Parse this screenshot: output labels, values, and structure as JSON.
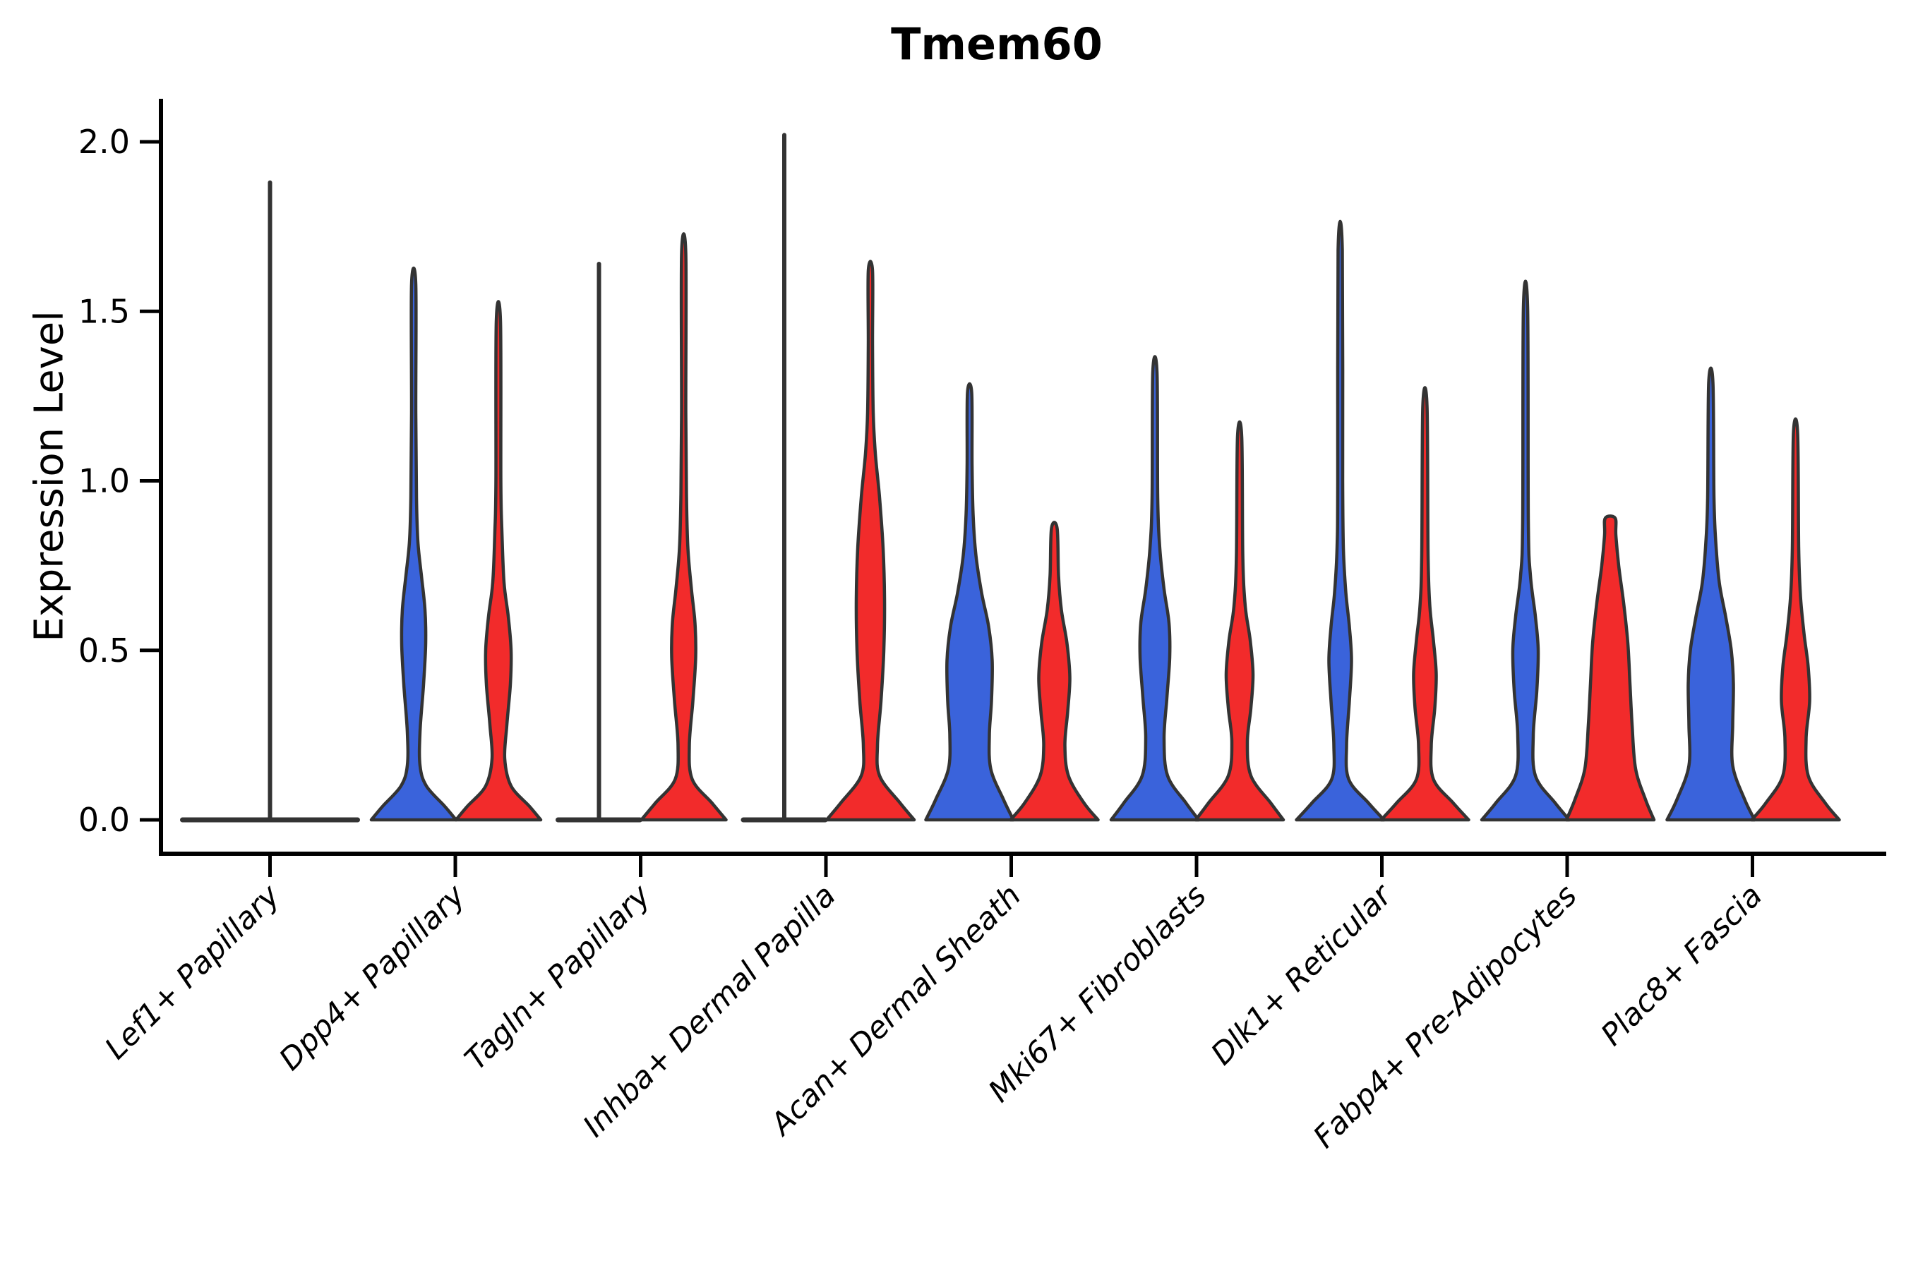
{
  "title": "Tmem60",
  "colors": {
    "blue_fill": "#3A63DB",
    "red_fill": "#F22B2B",
    "violin_outline": "#333333",
    "axis": "#000000",
    "text": "#000000"
  },
  "chart_data": {
    "type": "violin",
    "title": "Tmem60",
    "ylabel": "Expression Level",
    "xlabel": "",
    "ylim": [
      0,
      2.0
    ],
    "grid": false,
    "legend": "none",
    "yticks": [
      {
        "value": 0.0,
        "label": "0.0"
      },
      {
        "value": 0.5,
        "label": "0.5"
      },
      {
        "value": 1.0,
        "label": "1.0"
      },
      {
        "value": 1.5,
        "label": "1.5"
      },
      {
        "value": 2.0,
        "label": "2.0"
      }
    ],
    "categories": [
      "Lef1+ Papillary",
      "Dpp4+ Papillary",
      "Tagln+ Papillary",
      "Inhba+ Dermal Papilla",
      "Acan+ Dermal Sheath",
      "Mki67+ Fibroblasts",
      "Dlk1+ Reticular",
      "Fabp4+ Pre-Adipocytes",
      "Plac8+ Fascia"
    ],
    "series_note": "two violins per category: blue (left) and red (right); profile = [expression_value, density_halfwidth_px]",
    "groups": [
      {
        "category": "Lef1+ Papillary",
        "violins": [
          {
            "color": "blue",
            "type": "flat_spike",
            "offset": 0,
            "halfwidth": 124,
            "max": 1.88
          },
          {
            "color": "red",
            "type": "none"
          }
        ]
      },
      {
        "category": "Dpp4+ Papillary",
        "violins": [
          {
            "color": "blue",
            "type": "violin",
            "offset": -59,
            "max": 1.58,
            "profile": [
              [
                0,
                60
              ],
              [
                0.04,
                44
              ],
              [
                0.1,
                18
              ],
              [
                0.16,
                9
              ],
              [
                0.26,
                9
              ],
              [
                0.4,
                14
              ],
              [
                0.52,
                17
              ],
              [
                0.62,
                16
              ],
              [
                0.72,
                11
              ],
              [
                0.82,
                6
              ],
              [
                0.95,
                4
              ],
              [
                1.2,
                3
              ],
              [
                1.58,
                3
              ]
            ]
          },
          {
            "color": "red",
            "type": "violin",
            "offset": 61,
            "max": 1.47,
            "profile": [
              [
                0,
                60
              ],
              [
                0.04,
                44
              ],
              [
                0.1,
                18
              ],
              [
                0.18,
                9
              ],
              [
                0.28,
                12
              ],
              [
                0.4,
                17
              ],
              [
                0.5,
                18
              ],
              [
                0.6,
                14
              ],
              [
                0.7,
                8
              ],
              [
                0.85,
                5
              ],
              [
                1.0,
                3.5
              ],
              [
                1.47,
                3
              ]
            ]
          }
        ]
      },
      {
        "category": "Tagln+ Papillary",
        "violins": [
          {
            "color": "blue",
            "type": "flat_spike",
            "offset": -59,
            "halfwidth": 58,
            "max": 1.64
          },
          {
            "color": "red",
            "type": "violin",
            "offset": 61,
            "max": 1.67,
            "profile": [
              [
                0,
                60
              ],
              [
                0.05,
                40
              ],
              [
                0.12,
                12
              ],
              [
                0.22,
                8
              ],
              [
                0.35,
                13
              ],
              [
                0.48,
                17
              ],
              [
                0.58,
                16
              ],
              [
                0.68,
                11
              ],
              [
                0.8,
                6
              ],
              [
                0.95,
                4
              ],
              [
                1.2,
                3
              ],
              [
                1.67,
                3
              ]
            ]
          }
        ]
      },
      {
        "category": "Inhba+ Dermal Papilla",
        "violins": [
          {
            "color": "blue",
            "type": "flat_spike",
            "offset": -59,
            "halfwidth": 58,
            "max": 2.02
          },
          {
            "color": "red",
            "type": "violin",
            "offset": 63,
            "max": 1.62,
            "profile": [
              [
                0,
                62
              ],
              [
                0.05,
                42
              ],
              [
                0.13,
                13
              ],
              [
                0.22,
                10
              ],
              [
                0.35,
                15
              ],
              [
                0.5,
                19
              ],
              [
                0.65,
                20
              ],
              [
                0.8,
                18
              ],
              [
                0.95,
                13
              ],
              [
                1.08,
                7
              ],
              [
                1.2,
                4
              ],
              [
                1.4,
                3
              ],
              [
                1.62,
                3
              ]
            ]
          }
        ]
      },
      {
        "category": "Acan+ Dermal Sheath",
        "violins": [
          {
            "color": "blue",
            "type": "violin",
            "offset": -59,
            "max": 1.26,
            "profile": [
              [
                0,
                62
              ],
              [
                0.06,
                48
              ],
              [
                0.15,
                30
              ],
              [
                0.25,
                28
              ],
              [
                0.35,
                31
              ],
              [
                0.47,
                32
              ],
              [
                0.57,
                27
              ],
              [
                0.67,
                17
              ],
              [
                0.78,
                9
              ],
              [
                0.9,
                5
              ],
              [
                1.05,
                3.5
              ],
              [
                1.26,
                3
              ]
            ]
          },
          {
            "color": "red",
            "type": "violin",
            "offset": 61,
            "max": 0.86,
            "profile": [
              [
                0,
                62
              ],
              [
                0.05,
                42
              ],
              [
                0.13,
                20
              ],
              [
                0.22,
                15
              ],
              [
                0.32,
                19
              ],
              [
                0.42,
                22
              ],
              [
                0.52,
                18
              ],
              [
                0.62,
                10
              ],
              [
                0.72,
                6
              ],
              [
                0.86,
                4
              ]
            ]
          }
        ]
      },
      {
        "category": "Mki67+ Fibroblasts",
        "violins": [
          {
            "color": "blue",
            "type": "violin",
            "offset": -59,
            "max": 1.32,
            "profile": [
              [
                0,
                62
              ],
              [
                0.05,
                44
              ],
              [
                0.13,
                18
              ],
              [
                0.24,
                13
              ],
              [
                0.36,
                17
              ],
              [
                0.48,
                21
              ],
              [
                0.58,
                20
              ],
              [
                0.68,
                13
              ],
              [
                0.8,
                7
              ],
              [
                0.95,
                4
              ],
              [
                1.32,
                3
              ]
            ]
          },
          {
            "color": "red",
            "type": "violin",
            "offset": 61,
            "max": 1.13,
            "profile": [
              [
                0,
                62
              ],
              [
                0.05,
                44
              ],
              [
                0.13,
                16
              ],
              [
                0.23,
                11
              ],
              [
                0.33,
                16
              ],
              [
                0.43,
                19
              ],
              [
                0.53,
                15
              ],
              [
                0.63,
                8
              ],
              [
                0.78,
                4.5
              ],
              [
                1.13,
                3
              ]
            ]
          }
        ]
      },
      {
        "category": "Dlk1+ Reticular",
        "violins": [
          {
            "color": "blue",
            "type": "violin",
            "offset": -59,
            "max": 1.68,
            "profile": [
              [
                0,
                62
              ],
              [
                0.05,
                40
              ],
              [
                0.12,
                12
              ],
              [
                0.22,
                9
              ],
              [
                0.35,
                13
              ],
              [
                0.47,
                16
              ],
              [
                0.57,
                13
              ],
              [
                0.67,
                8
              ],
              [
                0.8,
                4.5
              ],
              [
                1.0,
                3.5
              ],
              [
                1.68,
                3
              ]
            ]
          },
          {
            "color": "red",
            "type": "violin",
            "offset": 61,
            "max": 1.22,
            "profile": [
              [
                0,
                62
              ],
              [
                0.05,
                40
              ],
              [
                0.12,
                12
              ],
              [
                0.22,
                9
              ],
              [
                0.33,
                14
              ],
              [
                0.43,
                16
              ],
              [
                0.53,
                12
              ],
              [
                0.63,
                7
              ],
              [
                0.78,
                4.5
              ],
              [
                1.22,
                3
              ]
            ]
          }
        ]
      },
      {
        "category": "Fabp4+ Pre-Adipocytes",
        "violins": [
          {
            "color": "blue",
            "type": "violin",
            "offset": -59,
            "max": 1.51,
            "profile": [
              [
                0,
                62
              ],
              [
                0.05,
                42
              ],
              [
                0.13,
                14
              ],
              [
                0.25,
                11
              ],
              [
                0.38,
                16
              ],
              [
                0.5,
                18
              ],
              [
                0.6,
                14
              ],
              [
                0.72,
                7
              ],
              [
                0.88,
                4
              ],
              [
                1.51,
                3
              ]
            ]
          },
          {
            "color": "red",
            "type": "violin",
            "offset": 61,
            "max": 0.89,
            "profile": [
              [
                0,
                62
              ],
              [
                0.06,
                50
              ],
              [
                0.15,
                36
              ],
              [
                0.28,
                31
              ],
              [
                0.4,
                28
              ],
              [
                0.52,
                25
              ],
              [
                0.64,
                19
              ],
              [
                0.75,
                12
              ],
              [
                0.84,
                8
              ],
              [
                0.89,
                7
              ]
            ]
          }
        ]
      },
      {
        "category": "Plac8+ Fascia",
        "violins": [
          {
            "color": "blue",
            "type": "violin",
            "offset": -59,
            "max": 1.29,
            "profile": [
              [
                0,
                62
              ],
              [
                0.06,
                48
              ],
              [
                0.16,
                31
              ],
              [
                0.28,
                31
              ],
              [
                0.4,
                32
              ],
              [
                0.5,
                29
              ],
              [
                0.6,
                21
              ],
              [
                0.7,
                12
              ],
              [
                0.82,
                7
              ],
              [
                0.95,
                4.5
              ],
              [
                1.29,
                3
              ]
            ]
          },
          {
            "color": "red",
            "type": "violin",
            "offset": 61,
            "max": 1.14,
            "profile": [
              [
                0,
                62
              ],
              [
                0.05,
                42
              ],
              [
                0.13,
                18
              ],
              [
                0.24,
                15
              ],
              [
                0.35,
                20
              ],
              [
                0.45,
                18
              ],
              [
                0.55,
                12
              ],
              [
                0.66,
                7
              ],
              [
                0.8,
                4.5
              ],
              [
                1.14,
                3
              ]
            ]
          }
        ]
      }
    ]
  }
}
